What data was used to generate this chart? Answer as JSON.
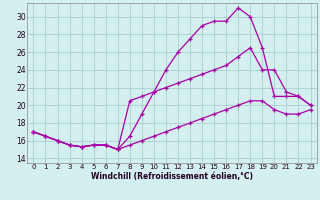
{
  "xlabel": "Windchill (Refroidissement éolien,°C)",
  "bg_color": "#d4efef",
  "grid_color": "#aacfcf",
  "line_color": "#aa00aa",
  "spine_color": "#888888",
  "xlim": [
    -0.5,
    23.5
  ],
  "ylim": [
    13.5,
    31.5
  ],
  "yticks": [
    14,
    16,
    18,
    20,
    22,
    24,
    26,
    28,
    30
  ],
  "xticks": [
    0,
    1,
    2,
    3,
    4,
    5,
    6,
    7,
    8,
    9,
    10,
    11,
    12,
    13,
    14,
    15,
    16,
    17,
    18,
    19,
    20,
    21,
    22,
    23
  ],
  "curve_top_x": [
    0,
    1,
    2,
    3,
    4,
    5,
    6,
    7,
    8,
    9,
    10,
    11,
    12,
    13,
    14,
    15,
    16,
    17,
    18,
    19,
    20,
    21,
    22,
    23
  ],
  "curve_top_y": [
    17.0,
    16.5,
    16.0,
    15.5,
    15.3,
    15.5,
    15.5,
    15.0,
    16.5,
    19.0,
    21.5,
    24.0,
    26.0,
    27.5,
    29.0,
    29.5,
    29.5,
    31.0,
    30.0,
    26.5,
    21.0,
    21.0,
    21.0,
    20.0
  ],
  "curve_mid_x": [
    0,
    1,
    2,
    3,
    4,
    5,
    6,
    7,
    8,
    9,
    10,
    11,
    12,
    13,
    14,
    15,
    16,
    17,
    18,
    19,
    20,
    21,
    22,
    23
  ],
  "curve_mid_y": [
    17.0,
    16.5,
    16.0,
    15.5,
    15.3,
    15.5,
    15.5,
    15.0,
    20.5,
    21.0,
    21.5,
    22.0,
    22.5,
    23.0,
    23.5,
    24.0,
    24.5,
    25.5,
    26.5,
    24.0,
    24.0,
    21.5,
    21.0,
    20.0
  ],
  "curve_bot_x": [
    0,
    1,
    2,
    3,
    4,
    5,
    6,
    7,
    8,
    9,
    10,
    11,
    12,
    13,
    14,
    15,
    16,
    17,
    18,
    19,
    20,
    21,
    22,
    23
  ],
  "curve_bot_y": [
    17.0,
    16.5,
    16.0,
    15.5,
    15.3,
    15.5,
    15.5,
    15.0,
    15.5,
    16.0,
    16.5,
    17.0,
    17.5,
    18.0,
    18.5,
    19.0,
    19.5,
    20.0,
    20.5,
    20.5,
    19.5,
    19.0,
    19.0,
    19.5
  ]
}
